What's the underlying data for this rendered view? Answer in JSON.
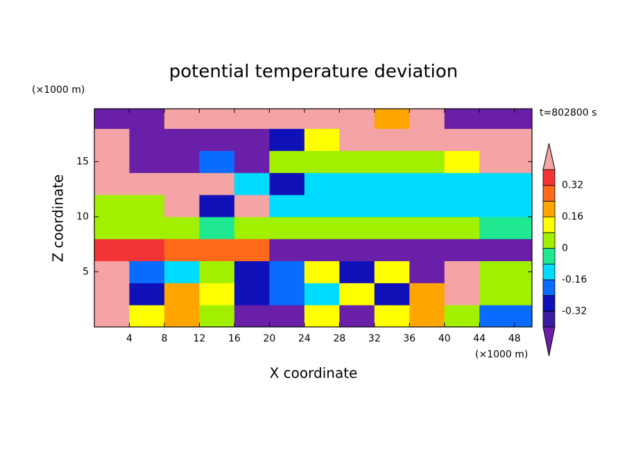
{
  "chart_data": {
    "type": "contour",
    "title": "potential temperature deviation",
    "xlabel": "X coordinate",
    "ylabel": "Z coordinate",
    "xunit": "(×1000 m)",
    "yunit": "(×1000 m)",
    "annotation": "t=802800 s",
    "xlim": [
      0,
      50
    ],
    "ylim": [
      0,
      19.8
    ],
    "xticks": [
      4,
      8,
      12,
      16,
      20,
      24,
      28,
      32,
      36,
      40,
      44,
      48
    ],
    "yticks": [
      5,
      10,
      15
    ],
    "x": [
      2,
      6,
      10,
      14,
      18,
      22,
      26,
      30,
      34,
      38,
      42,
      46
    ],
    "y": [
      1,
      3,
      5,
      7,
      9,
      11,
      13,
      15,
      17,
      19
    ],
    "z": [
      [
        0.5,
        0.1,
        0.2,
        0.05,
        -0.5,
        -0.5,
        0.1,
        -0.5,
        0.12,
        0.2,
        0.03,
        -0.2
      ],
      [
        0.5,
        -0.3,
        0.2,
        0.12,
        -0.3,
        -0.2,
        -0.1,
        0.1,
        -0.3,
        0.2,
        0.5,
        0.03
      ],
      [
        0.5,
        -0.2,
        -0.1,
        0.0,
        -0.3,
        -0.2,
        0.1,
        -0.3,
        0.1,
        -0.5,
        0.5,
        0.03
      ],
      [
        0.35,
        0.35,
        0.25,
        0.25,
        0.25,
        -0.5,
        -0.5,
        -0.5,
        -0.5,
        -0.5,
        -0.5,
        -0.5
      ],
      [
        0.03,
        0.03,
        0.03,
        -0.05,
        0.03,
        0.03,
        0.03,
        0.03,
        0.03,
        0.03,
        0.03,
        -0.05
      ],
      [
        0.03,
        0.03,
        0.5,
        -0.3,
        0.5,
        -0.12,
        -0.12,
        -0.12,
        -0.12,
        -0.12,
        -0.12,
        -0.12
      ],
      [
        0.5,
        0.5,
        0.5,
        0.5,
        -0.1,
        -0.3,
        -0.1,
        -0.1,
        -0.1,
        -0.1,
        -0.1,
        -0.1
      ],
      [
        0.5,
        -0.5,
        -0.5,
        -0.2,
        -0.5,
        0.0,
        0.03,
        0.03,
        0.03,
        0.03,
        0.1,
        0.5
      ],
      [
        0.5,
        -0.5,
        -0.5,
        -0.5,
        -0.5,
        -0.3,
        0.1,
        0.5,
        0.5,
        0.5,
        0.5,
        0.5
      ],
      [
        -0.5,
        -0.5,
        0.5,
        0.5,
        0.5,
        0.5,
        0.5,
        0.5,
        0.2,
        0.5,
        -0.5,
        -0.5
      ]
    ],
    "levels": [
      -0.4,
      -0.32,
      -0.24,
      -0.16,
      -0.08,
      0,
      0.08,
      0.16,
      0.24,
      0.32,
      0.4
    ],
    "colorbar_ticks": [
      -0.32,
      -0.16,
      0,
      0.16,
      0.32
    ],
    "colors": [
      "#6a1fa8",
      "#3a1aa0",
      "#1010b8",
      "#0a6cff",
      "#00dcff",
      "#20e890",
      "#a0f000",
      "#ffff00",
      "#ffa500",
      "#ff6a1a",
      "#f23434",
      "#f4a4a4"
    ]
  }
}
